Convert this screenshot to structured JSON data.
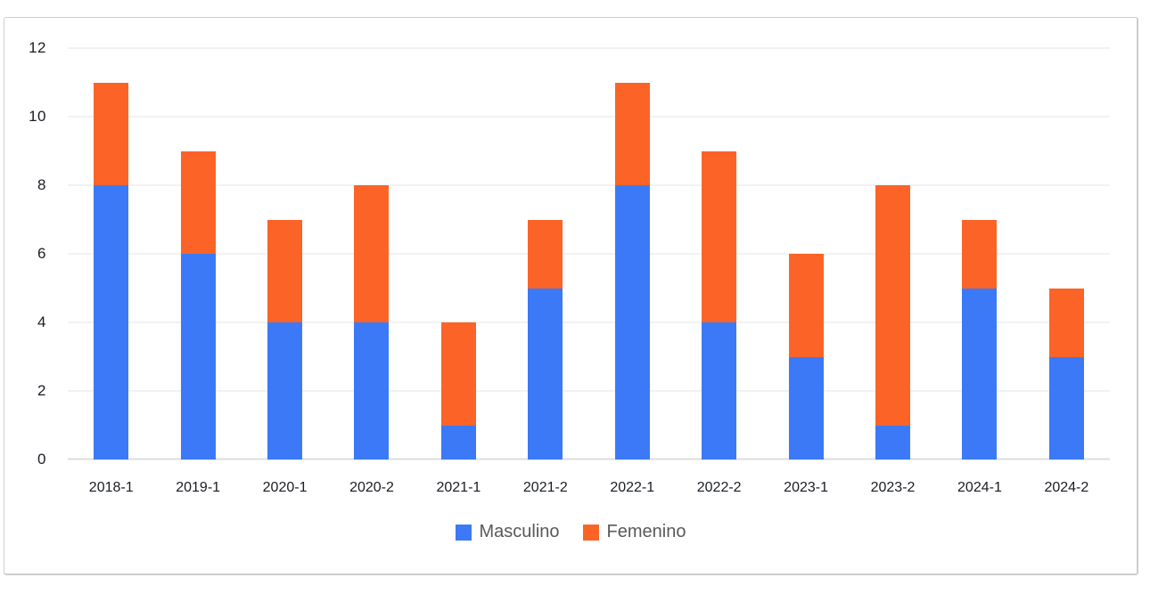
{
  "chart_data": {
    "type": "bar",
    "stacked": true,
    "title": "",
    "xlabel": "",
    "ylabel": "",
    "categories": [
      "2018-1",
      "2019-1",
      "2020-1",
      "2020-2",
      "2021-1",
      "2021-2",
      "2022-1",
      "2022-2",
      "2023-1",
      "2023-2",
      "2024-1",
      "2024-2"
    ],
    "series": [
      {
        "name": "Masculino",
        "color": "#3C79F7",
        "values": [
          8,
          6,
          4,
          4,
          1,
          5,
          8,
          4,
          3,
          1,
          5,
          3
        ]
      },
      {
        "name": "Femenino",
        "color": "#FB6426",
        "values": [
          3,
          3,
          3,
          4,
          3,
          2,
          3,
          5,
          3,
          7,
          2,
          2
        ]
      }
    ],
    "totals": [
      11,
      9,
      7,
      8,
      4,
      7,
      11,
      9,
      6,
      8,
      7,
      5
    ],
    "ylim": [
      0,
      12
    ],
    "yticks": [
      0,
      2,
      4,
      6,
      8,
      10,
      12
    ],
    "grid": true,
    "legend_position": "bottom"
  },
  "colors": {
    "masculino": "#3C79F7",
    "femenino": "#FB6426",
    "gridline": "#E5E5E5",
    "axis_text": "#191C23",
    "legend_text": "#58595B",
    "card_border": "#CBCDD0",
    "background": "#FFFFFF"
  }
}
